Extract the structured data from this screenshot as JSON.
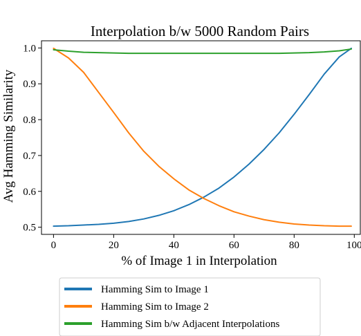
{
  "chart_data": {
    "type": "line",
    "title": "Interpolation b/w 5000 Random Pairs",
    "xlabel": "% of Image 1 in Interpolation",
    "ylabel": "Avg Hamming Similarity",
    "xlim": [
      -4,
      102
    ],
    "ylim": [
      0.48,
      1.02
    ],
    "xticks": [
      0,
      20,
      40,
      60,
      80,
      100
    ],
    "yticks": [
      0.5,
      0.6,
      0.7,
      0.8,
      0.9,
      1.0
    ],
    "xtick_labels": [
      "0",
      "20",
      "40",
      "60",
      "80",
      "100"
    ],
    "ytick_labels": [
      "0.5",
      "0.6",
      "0.7",
      "0.8",
      "0.9",
      "1.0"
    ],
    "grid": false,
    "legend_position": "below",
    "x": [
      0,
      5,
      10,
      15,
      20,
      25,
      30,
      35,
      40,
      45,
      50,
      55,
      60,
      65,
      70,
      75,
      80,
      85,
      90,
      95,
      99
    ],
    "series": [
      {
        "name": "Hamming Sim to Image 1",
        "color": "#1f77b4",
        "values": [
          0.503,
          0.504,
          0.506,
          0.508,
          0.511,
          0.516,
          0.523,
          0.533,
          0.546,
          0.563,
          0.584,
          0.609,
          0.64,
          0.676,
          0.717,
          0.763,
          0.815,
          0.87,
          0.927,
          0.975,
          0.999
        ]
      },
      {
        "name": "Hamming Sim to Image 2",
        "color": "#ff7f0e",
        "values": [
          0.999,
          0.972,
          0.932,
          0.876,
          0.82,
          0.763,
          0.712,
          0.67,
          0.635,
          0.604,
          0.58,
          0.56,
          0.543,
          0.531,
          0.521,
          0.514,
          0.509,
          0.506,
          0.504,
          0.503,
          0.503
        ]
      },
      {
        "name": "Hamming Sim b/w Adjacent Interpolations",
        "color": "#2ca02c",
        "values": [
          0.995,
          0.991,
          0.988,
          0.987,
          0.986,
          0.985,
          0.985,
          0.985,
          0.985,
          0.985,
          0.985,
          0.985,
          0.985,
          0.985,
          0.985,
          0.985,
          0.986,
          0.987,
          0.989,
          0.992,
          0.997
        ]
      }
    ]
  }
}
